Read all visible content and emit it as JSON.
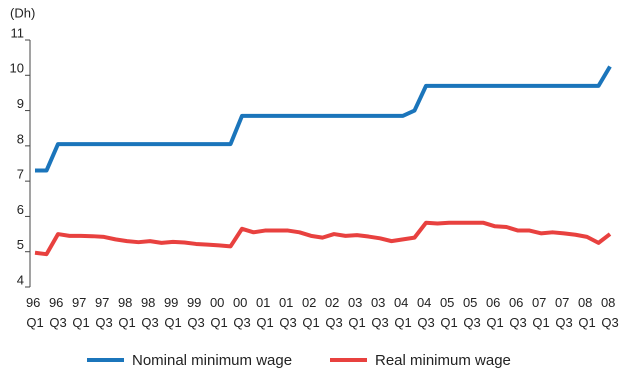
{
  "chart_data": {
    "type": "line",
    "y_unit": "(Dh)",
    "categories": [
      "96 Q1",
      null,
      "96 Q3",
      null,
      "97 Q1",
      null,
      "97 Q3",
      null,
      "98 Q1",
      null,
      "98 Q3",
      null,
      "99 Q1",
      null,
      "99 Q3",
      null,
      "00 Q1",
      null,
      "00 Q3",
      null,
      "01 Q1",
      null,
      "01 Q3",
      null,
      "02 Q1",
      null,
      "02 Q3",
      null,
      "03 Q1",
      null,
      "03 Q3",
      null,
      "04 Q1",
      null,
      "04 Q3",
      null,
      "05 Q1",
      null,
      "05 Q3",
      null,
      "06 Q1",
      null,
      "06 Q3",
      null,
      "07 Q1",
      null,
      "07 Q3",
      null,
      "08 Q1",
      null,
      "08 Q3"
    ],
    "series": [
      {
        "name": "Nominal minimum wage",
        "color": "#1b75bb",
        "values": [
          7.3,
          7.3,
          8.05,
          8.05,
          8.05,
          8.05,
          8.05,
          8.05,
          8.05,
          8.05,
          8.05,
          8.05,
          8.05,
          8.05,
          8.05,
          8.05,
          8.05,
          8.05,
          8.85,
          8.85,
          8.85,
          8.85,
          8.85,
          8.85,
          8.85,
          8.85,
          8.85,
          8.85,
          8.85,
          8.85,
          8.85,
          8.85,
          8.85,
          9.0,
          9.7,
          9.7,
          9.7,
          9.7,
          9.7,
          9.7,
          9.7,
          9.7,
          9.7,
          9.7,
          9.7,
          9.7,
          9.7,
          9.7,
          9.7,
          9.7,
          10.25
        ]
      },
      {
        "name": "Real minimum wage",
        "color": "#e8413f",
        "values": [
          4.97,
          4.93,
          5.5,
          5.45,
          5.45,
          5.44,
          5.42,
          5.35,
          5.3,
          5.27,
          5.3,
          5.25,
          5.28,
          5.26,
          5.22,
          5.2,
          5.18,
          5.15,
          5.65,
          5.55,
          5.6,
          5.6,
          5.6,
          5.55,
          5.45,
          5.4,
          5.5,
          5.45,
          5.47,
          5.43,
          5.38,
          5.3,
          5.35,
          5.4,
          5.82,
          5.8,
          5.82,
          5.82,
          5.82,
          5.82,
          5.72,
          5.7,
          5.6,
          5.6,
          5.52,
          5.55,
          5.52,
          5.48,
          5.42,
          5.25,
          5.5
        ]
      }
    ],
    "ylim": [
      4,
      11
    ],
    "yticks": [
      4,
      5,
      6,
      7,
      8,
      9,
      10,
      11
    ],
    "grid": false
  }
}
